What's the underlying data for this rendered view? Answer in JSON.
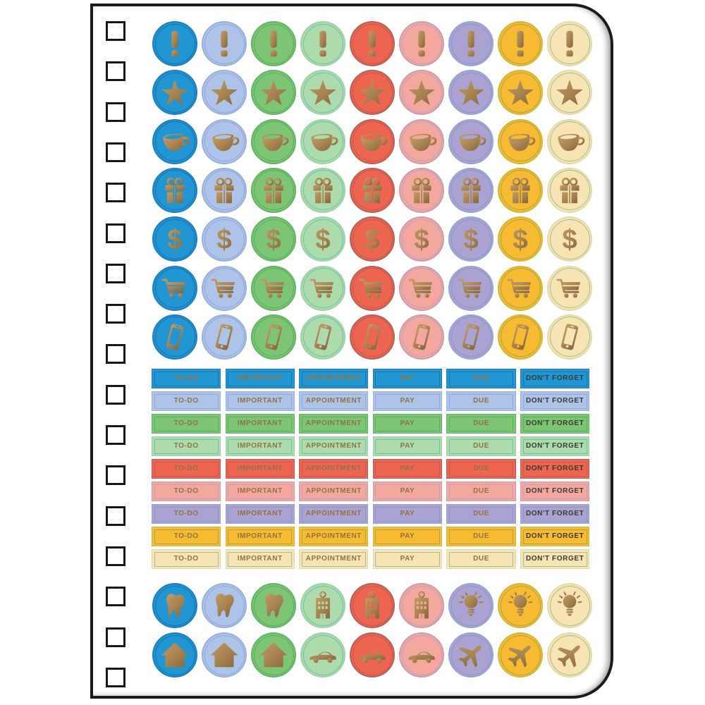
{
  "page": {
    "type": "spiral-notebook-sticker-sheet",
    "binding_holes": 17,
    "border_color": "#1b1b1b",
    "background": "#ffffff",
    "icon_gold_from": "#c29b63",
    "icon_gold_to": "#85653e"
  },
  "columns": [
    {
      "name": "blue",
      "fill": "#2196d2",
      "edge": "#1b7fc0",
      "ring": "#1a6ba8"
    },
    {
      "name": "periwinkle",
      "fill": "#adc3e7",
      "edge": "#98b0dd",
      "ring": "#8aa3d8"
    },
    {
      "name": "green",
      "fill": "#7cc575",
      "edge": "#62b663",
      "ring": "#55a85a"
    },
    {
      "name": "mint",
      "fill": "#addbae",
      "edge": "#9ed2a2",
      "ring": "#5cbfa4"
    },
    {
      "name": "red",
      "fill": "#ec6551",
      "edge": "#b26258",
      "ring": "#c4544a"
    },
    {
      "name": "salmon",
      "fill": "#f4a79e",
      "edge": "#d49aa4",
      "ring": "#a7a4ca"
    },
    {
      "name": "purple",
      "fill": "#aaa3d1",
      "edge": "#93a5d6",
      "ring": "#8a90c5"
    },
    {
      "name": "gold",
      "fill": "#f6bb32",
      "edge": "#d8b535",
      "ring": "#93a34c"
    },
    {
      "name": "cream",
      "fill": "#f7e4b3",
      "edge": "#ecd8a0",
      "ring": "#85b8a3"
    }
  ],
  "top_icon_rows": [
    "exclamation",
    "star",
    "coffee-cup",
    "gift",
    "dollar",
    "shopping-cart",
    "smartphone"
  ],
  "labels": {
    "rows": 9,
    "items": [
      "TO-DO",
      "IMPORTANT",
      "APPOINTMENT",
      "PAY",
      "DUE",
      "DON'T FORGET"
    ],
    "text_color": "#8f7342",
    "dont_forget_text_color": "#3b3a30"
  },
  "bottom_icon_rows": [
    [
      "tooth",
      "tooth",
      "tooth",
      "hospital",
      "hospital",
      "hospital",
      "lightbulb",
      "lightbulb",
      "lightbulb"
    ],
    [
      "house",
      "house",
      "house",
      "car",
      "car",
      "car",
      "airplane",
      "airplane",
      "airplane"
    ]
  ]
}
